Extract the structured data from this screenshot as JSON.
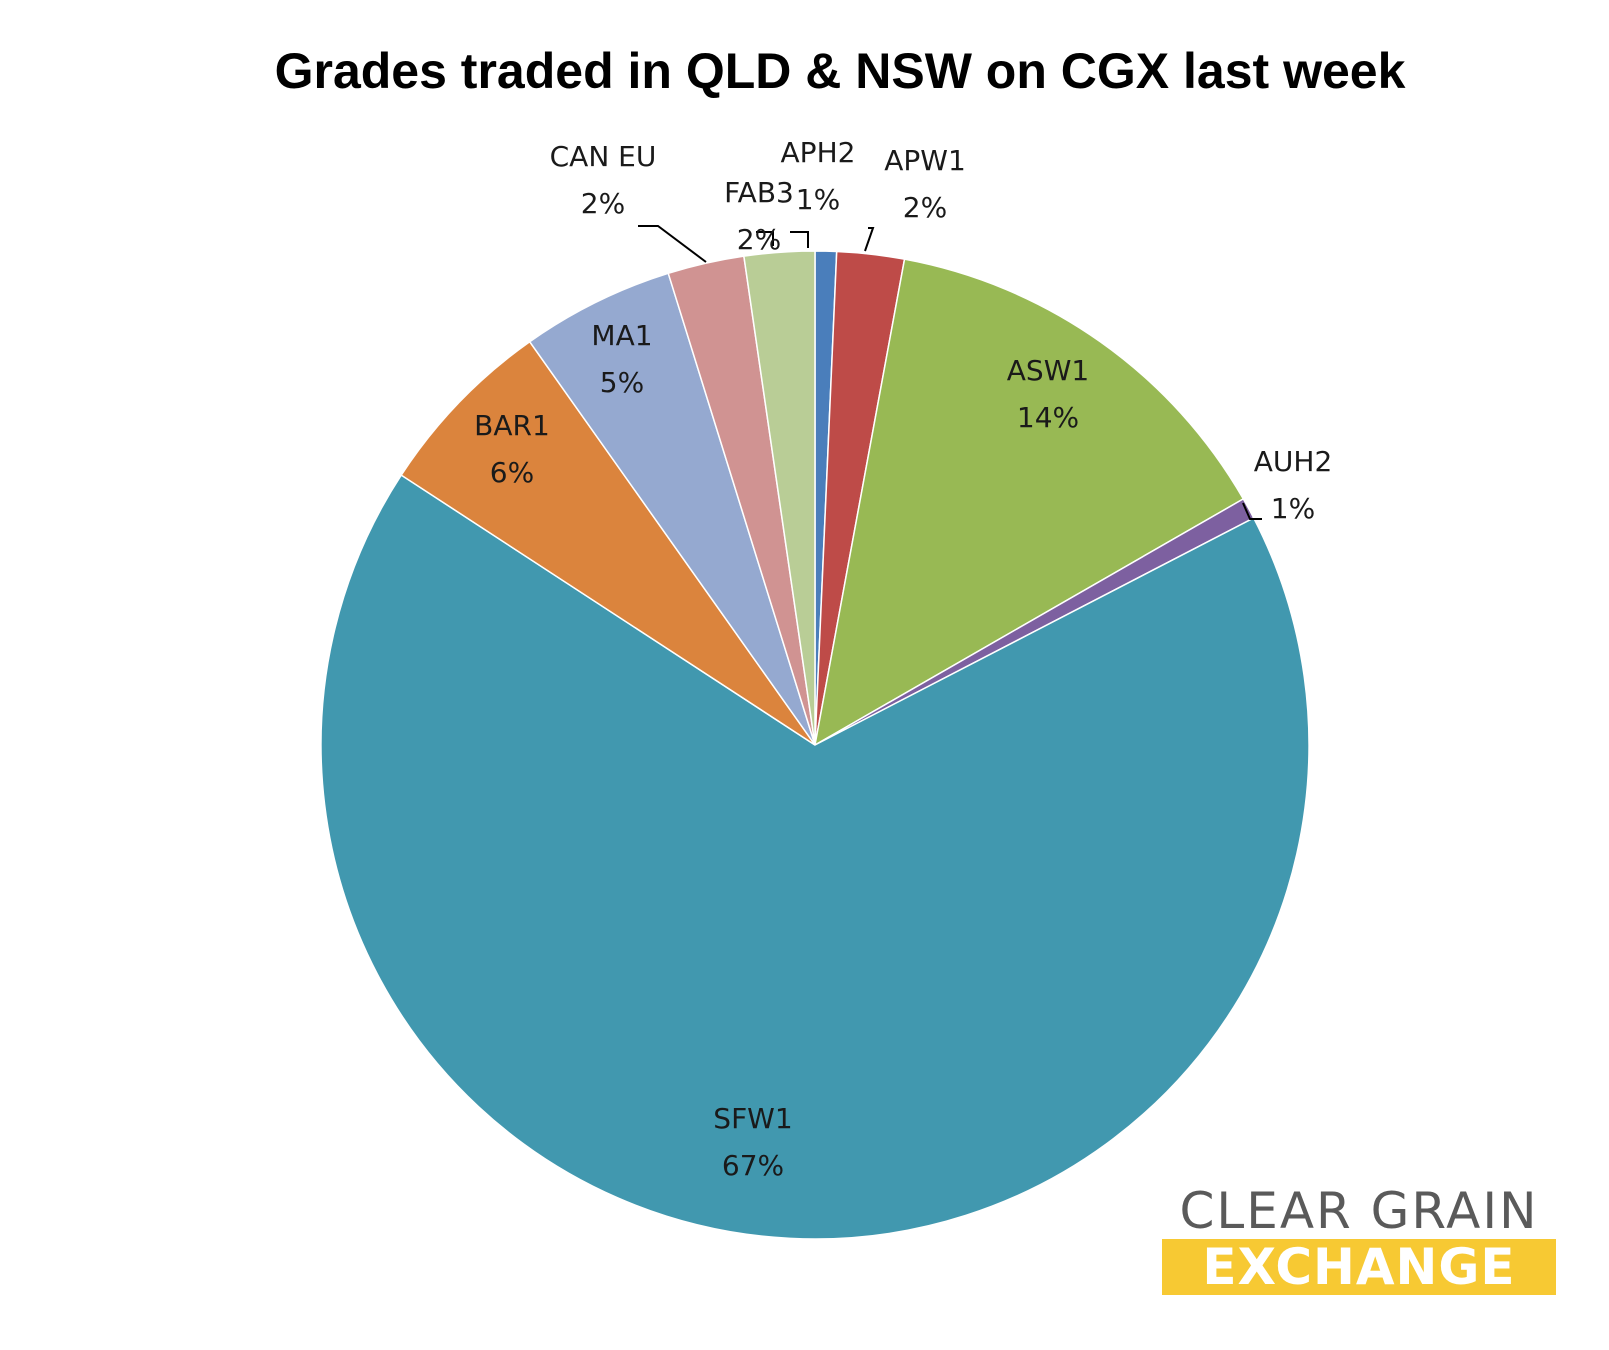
{
  "chart_data": {
    "type": "pie",
    "title": "Grades traded in QLD & NSW on CGX last week",
    "slices": [
      {
        "label": "APH2",
        "pct_label": "1%",
        "value": 0.7,
        "color": "#4a7ebb"
      },
      {
        "label": "APW1",
        "pct_label": "2%",
        "value": 2.2,
        "color": "#be4b48"
      },
      {
        "label": "ASW1",
        "pct_label": "14%",
        "value": 13.8,
        "color": "#98b954"
      },
      {
        "label": "AUH2",
        "pct_label": "1%",
        "value": 0.7,
        "color": "#7d60a0"
      },
      {
        "label": "SFW1",
        "pct_label": "67%",
        "value": 66.8,
        "color": "#4198af"
      },
      {
        "label": "BAR1",
        "pct_label": "6%",
        "value": 6.0,
        "color": "#db843d"
      },
      {
        "label": "MA1",
        "pct_label": "5%",
        "value": 5.0,
        "color": "#95a9d0"
      },
      {
        "label": "CAN EU",
        "pct_label": "2%",
        "value": 2.5,
        "color": "#d09392"
      },
      {
        "label": "FAB3",
        "pct_label": "2%",
        "value": 2.3,
        "color": "#b9cd96"
      }
    ]
  },
  "logo": {
    "line1": "CLEAR GRAIN",
    "line2": "EXCHANGE"
  }
}
